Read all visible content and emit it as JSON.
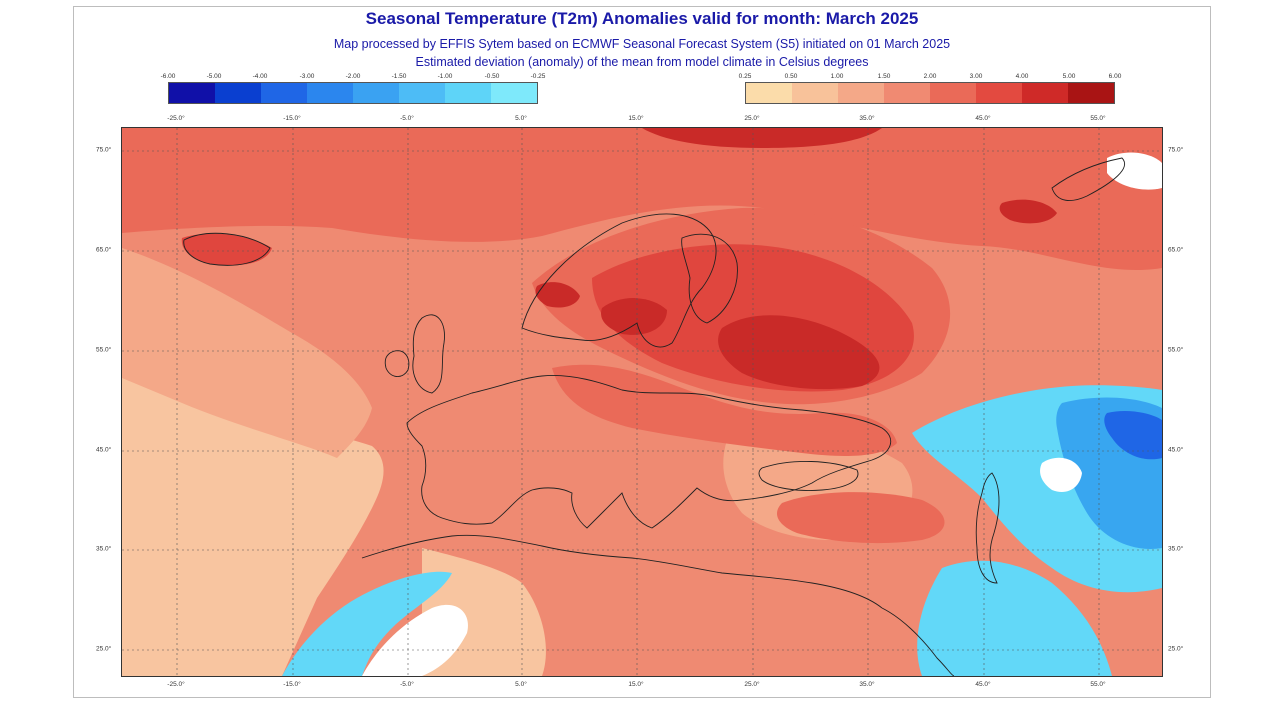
{
  "title": "Seasonal Temperature (T2m) Anomalies valid for month: March 2025",
  "subtitle1": "Map processed by EFFIS Sytem based on ECMWF Seasonal Forecast System (S5) initiated on 01 March 2025",
  "subtitle2": "Estimated deviation (anomaly) of the mean from model climate in Celsius degrees",
  "legend_cold": {
    "ticks": [
      "-6.00",
      "-5.00",
      "-4.00",
      "-3.00",
      "-2.00",
      "-1.50",
      "-1.00",
      "-0.50",
      "-0.25"
    ],
    "colors": [
      "#1010a8",
      "#0a3fd0",
      "#1f66e6",
      "#2b86ee",
      "#3aa2f2",
      "#4dbcf6",
      "#5ed4f8",
      "#7ee9fb"
    ]
  },
  "legend_warm": {
    "ticks": [
      "0.25",
      "0.50",
      "1.00",
      "1.50",
      "2.00",
      "3.00",
      "4.00",
      "5.00",
      "6.00"
    ],
    "colors": [
      "#fbdcaa",
      "#f8c29a",
      "#f4a888",
      "#f08a72",
      "#ea6a58",
      "#e34a40",
      "#cf2a28",
      "#a91414"
    ]
  },
  "lon_labels": [
    "-25.0°",
    "-15.0°",
    "-5.0°",
    "5.0°",
    "15.0°",
    "25.0°",
    "35.0°",
    "45.0°",
    "55.0°"
  ],
  "lat_labels": [
    "75.0°",
    "65.0°",
    "55.0°",
    "45.0°",
    "35.0°",
    "25.0°"
  ],
  "region_colors": {
    "base": "#ef8a72",
    "pale": "#f8c5a0",
    "light": "#f4a888",
    "warm": "#ea6a58",
    "hot": "#e0463e",
    "very_hot": "#c92a28",
    "cold_light": "#62d8f8",
    "cold_mid": "#38a6f0",
    "cold_deep": "#1f66e6",
    "no_anomaly": "#ffffff",
    "border_line": "#222222",
    "grid_line": "#555555"
  }
}
